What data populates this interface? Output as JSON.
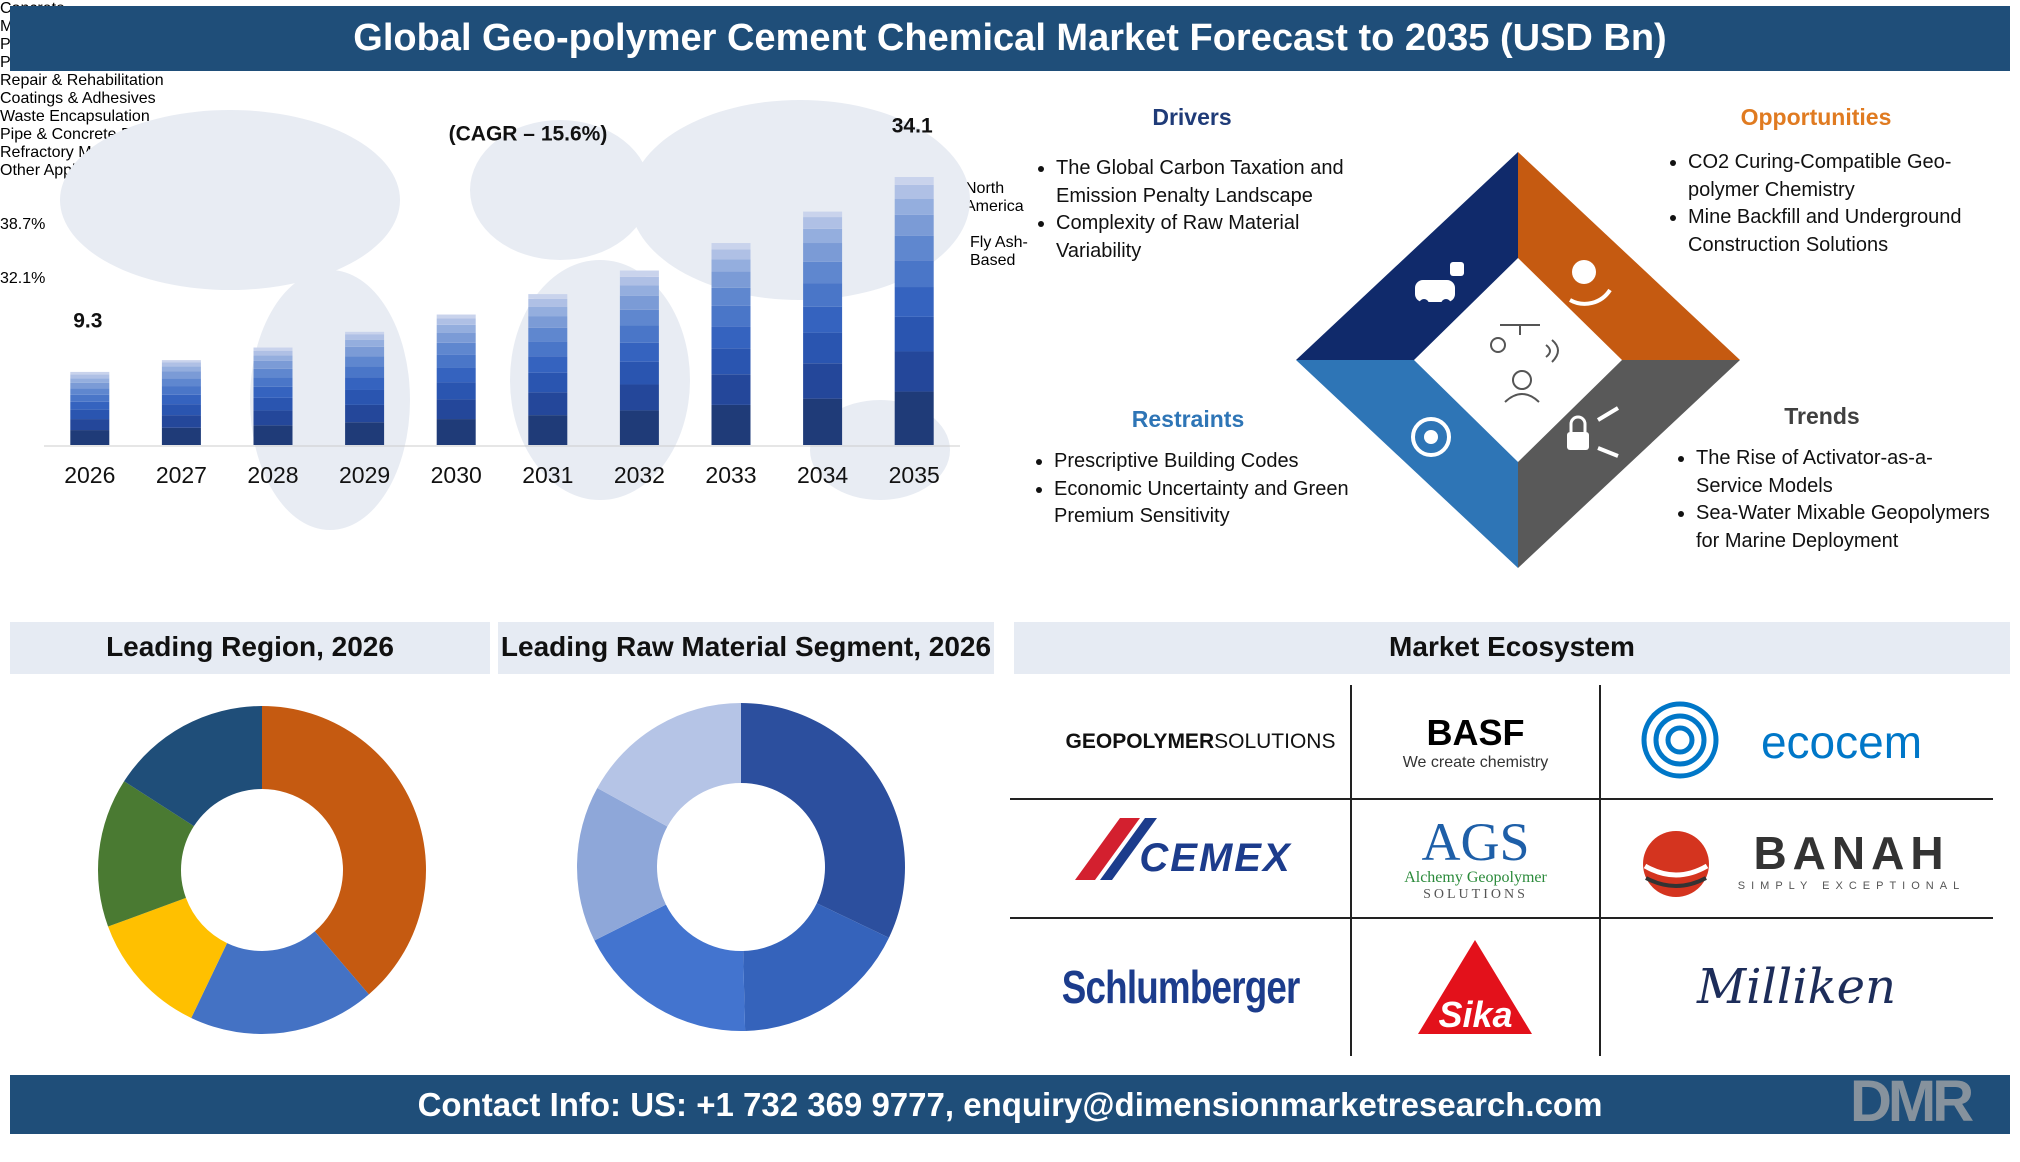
{
  "header": {
    "title": "Global Geo-polymer Cement Chemical Market Forecast to 2035 (USD Bn)"
  },
  "chart_data": [
    {
      "type": "bar",
      "stacked": true,
      "annotation": "(CAGR – 15.6%)",
      "categories": [
        "2026",
        "2027",
        "2028",
        "2029",
        "2030",
        "2031",
        "2032",
        "2033",
        "2034",
        "2035"
      ],
      "totals": [
        9.3,
        null,
        null,
        null,
        null,
        null,
        null,
        null,
        null,
        34.1
      ],
      "series": [
        {
          "name": "Concrete",
          "color": "#1f3b78",
          "values": [
            1.9,
            2.2,
            2.5,
            2.9,
            3.3,
            3.8,
            4.4,
            5.1,
            5.9,
            6.8
          ]
        },
        {
          "name": "Mortar & Grouts",
          "color": "#24479a",
          "values": [
            1.4,
            1.6,
            1.9,
            2.2,
            2.5,
            2.9,
            3.3,
            3.9,
            4.5,
            5.1
          ]
        },
        {
          "name": "Precast Elements",
          "color": "#2a55b0",
          "values": [
            1.2,
            1.4,
            1.6,
            1.9,
            2.2,
            2.5,
            2.9,
            3.3,
            3.9,
            4.4
          ]
        },
        {
          "name": "Pavements & Overlays",
          "color": "#3563bf",
          "values": [
            1.0,
            1.2,
            1.4,
            1.6,
            1.8,
            2.1,
            2.4,
            2.8,
            3.3,
            3.8
          ]
        },
        {
          "name": "Repair & Rehabilitation",
          "color": "#4a76c8",
          "values": [
            0.9,
            1.1,
            1.2,
            1.4,
            1.7,
            1.9,
            2.2,
            2.6,
            3.0,
            3.4
          ]
        },
        {
          "name": "Coatings & Adhesives",
          "color": "#5f87cf",
          "values": [
            0.8,
            1.0,
            1.1,
            1.3,
            1.5,
            1.7,
            2.0,
            2.3,
            2.7,
            3.1
          ]
        },
        {
          "name": "Waste Encapsulation",
          "color": "#7b9bd6",
          "values": [
            0.7,
            0.9,
            1.0,
            1.2,
            1.3,
            1.5,
            1.8,
            2.1,
            2.4,
            2.7
          ]
        },
        {
          "name": "Pipe & Concrete Repair",
          "color": "#94aede",
          "values": [
            0.6,
            0.6,
            0.7,
            0.9,
            1.0,
            1.2,
            1.3,
            1.5,
            1.8,
            2.0
          ]
        },
        {
          "name": "Refractory Materials",
          "color": "#afc0e5",
          "values": [
            0.5,
            0.5,
            0.6,
            0.7,
            0.8,
            1.0,
            1.1,
            1.3,
            1.5,
            1.8
          ]
        },
        {
          "name": "Other Application",
          "color": "#c9d3ec",
          "values": [
            0.3,
            0.3,
            0.4,
            0.3,
            0.5,
            0.6,
            0.8,
            0.8,
            0.7,
            1.0
          ]
        }
      ]
    },
    {
      "type": "donut",
      "title": "Leading Region, 2026",
      "categories": [
        "North America",
        null,
        null,
        null,
        null
      ],
      "values": [
        38.7,
        18.4,
        12.3,
        14.7,
        15.9
      ],
      "value_labels": [
        "38.7%",
        null,
        null,
        null,
        null
      ],
      "colors": [
        "#c55a11",
        "#4472c4",
        "#ffc000",
        "#4a7a32",
        "#1f4e79"
      ]
    },
    {
      "type": "donut",
      "title": "Leading Raw Material Segment, 2026",
      "categories": [
        "Fly Ash-Based",
        null,
        null,
        null,
        null
      ],
      "values": [
        32.1,
        17.5,
        18.0,
        15.4,
        17.0
      ],
      "value_labels": [
        "32.1%",
        null,
        null,
        null,
        null
      ],
      "colors": [
        "#2c4f9e",
        "#3563bb",
        "#4374cf",
        "#8ea7d9",
        "#b5c4e6"
      ]
    }
  ],
  "market_dynamics": {
    "drivers": {
      "title": "Drivers",
      "items": [
        "The Global Carbon Taxation and Emission Penalty Landscape",
        "Complexity of Raw Material Variability"
      ]
    },
    "opportunities": {
      "title": "Opportunities",
      "items": [
        "CO2 Curing-Compatible Geo-polymer Chemistry",
        "Mine Backfill and Underground Construction Solutions"
      ]
    },
    "restraints": {
      "title": "Restraints",
      "items": [
        "Prescriptive Building Codes",
        "Economic Uncertainty and Green Premium Sensitivity"
      ]
    },
    "trends": {
      "title": "Trends",
      "items": [
        "The Rise of Activator-as-a-Service Models",
        "Sea-Water Mixable Geopolymers for Marine Deployment"
      ]
    }
  },
  "ecosystem": {
    "title": "Market Ecosystem",
    "logos": [
      {
        "text": "GEOPOLYMER",
        "text2": "SOLUTIONS"
      },
      {
        "text": "BASF",
        "tagline": "We create chemistry"
      },
      {
        "text": "ecocem"
      },
      {
        "text": "CEMEX"
      },
      {
        "text": "AGS",
        "tagline": "Alchemy Geopolymer",
        "tagline2": "SOLUTIONS"
      },
      {
        "text": "BANAH",
        "tagline": "SIMPLY EXCEPTIONAL"
      },
      {
        "text": "Schlumberger"
      },
      {
        "text": "Sika"
      },
      {
        "text": "Milliken"
      }
    ]
  },
  "footer": {
    "contact": "Contact Info: US: +1 732 369 9777, enquiry@dimensionmarketresearch.com",
    "logo": "DMR"
  }
}
